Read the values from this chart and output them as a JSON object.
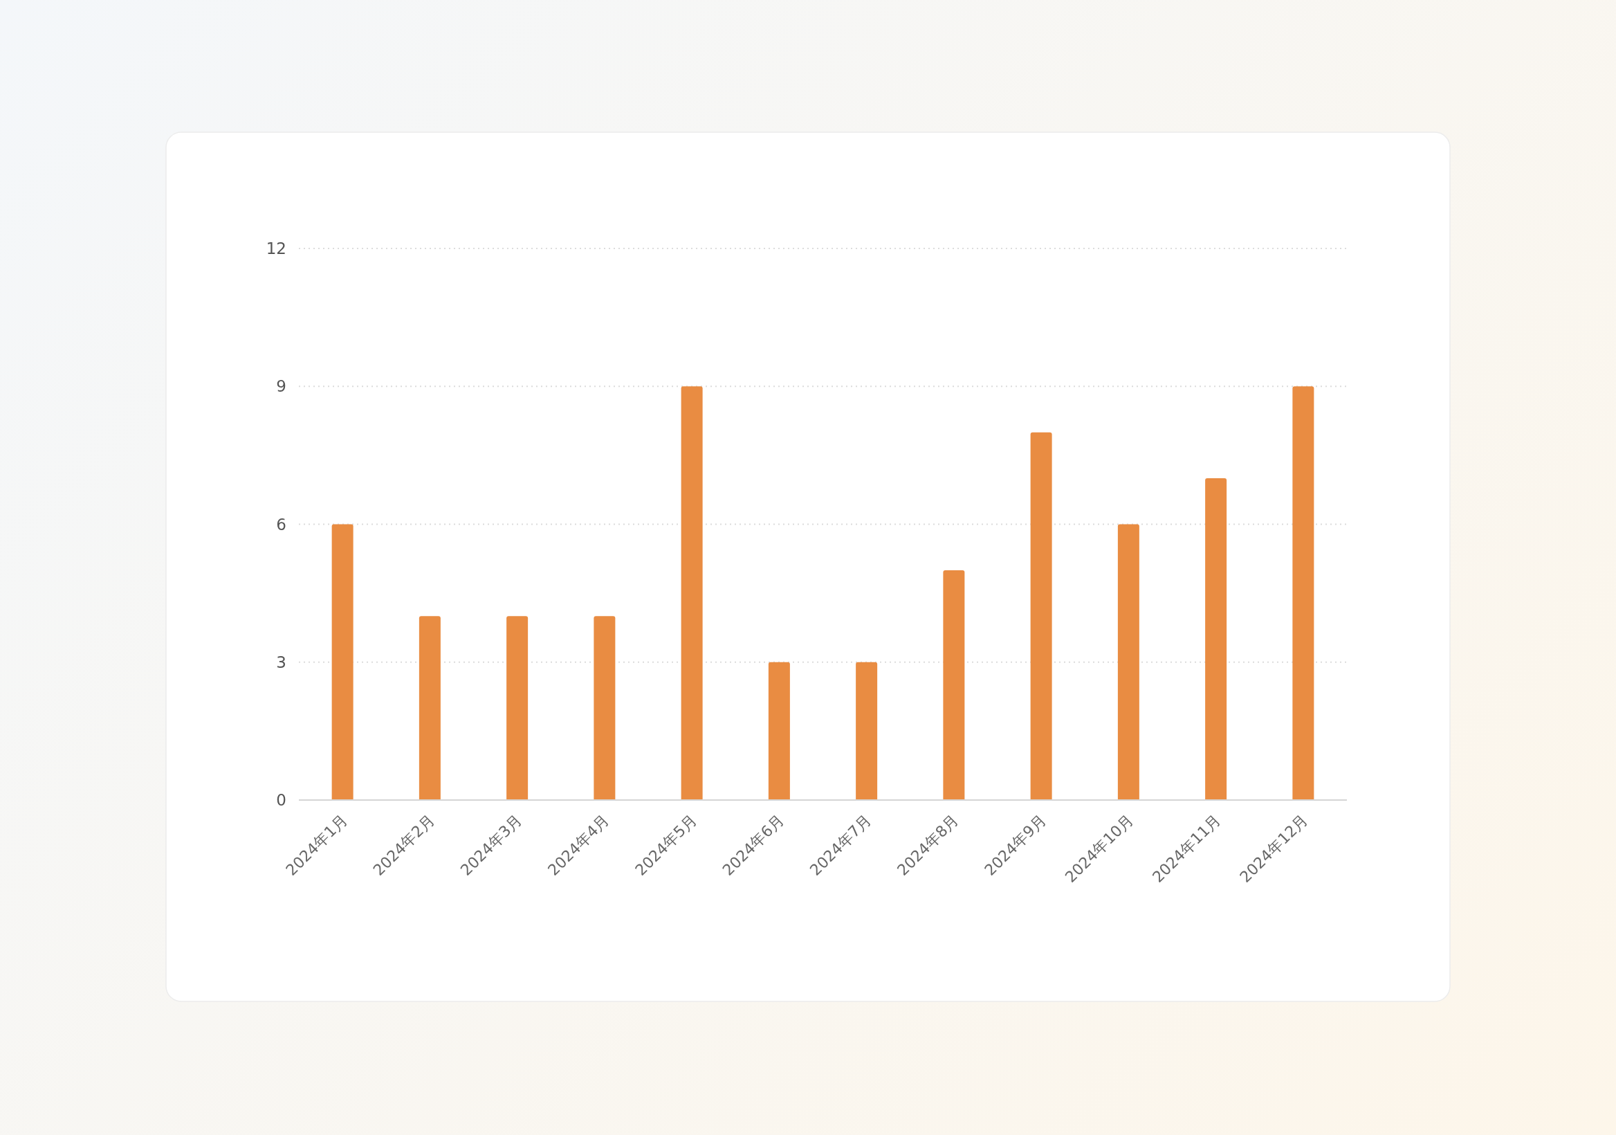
{
  "chart_data": {
    "type": "bar",
    "categories": [
      "2024年1月",
      "2024年2月",
      "2024年3月",
      "2024年4月",
      "2024年5月",
      "2024年6月",
      "2024年7月",
      "2024年8月",
      "2024年9月",
      "2024年10月",
      "2024年11月",
      "2024年12月"
    ],
    "values": [
      6,
      4,
      4,
      4,
      9,
      3,
      3,
      5,
      8,
      6,
      7,
      9
    ],
    "color": "#e98c42",
    "ylim": [
      0,
      12
    ],
    "yticks": [
      0,
      3,
      6,
      9,
      12
    ],
    "grid": "y"
  }
}
